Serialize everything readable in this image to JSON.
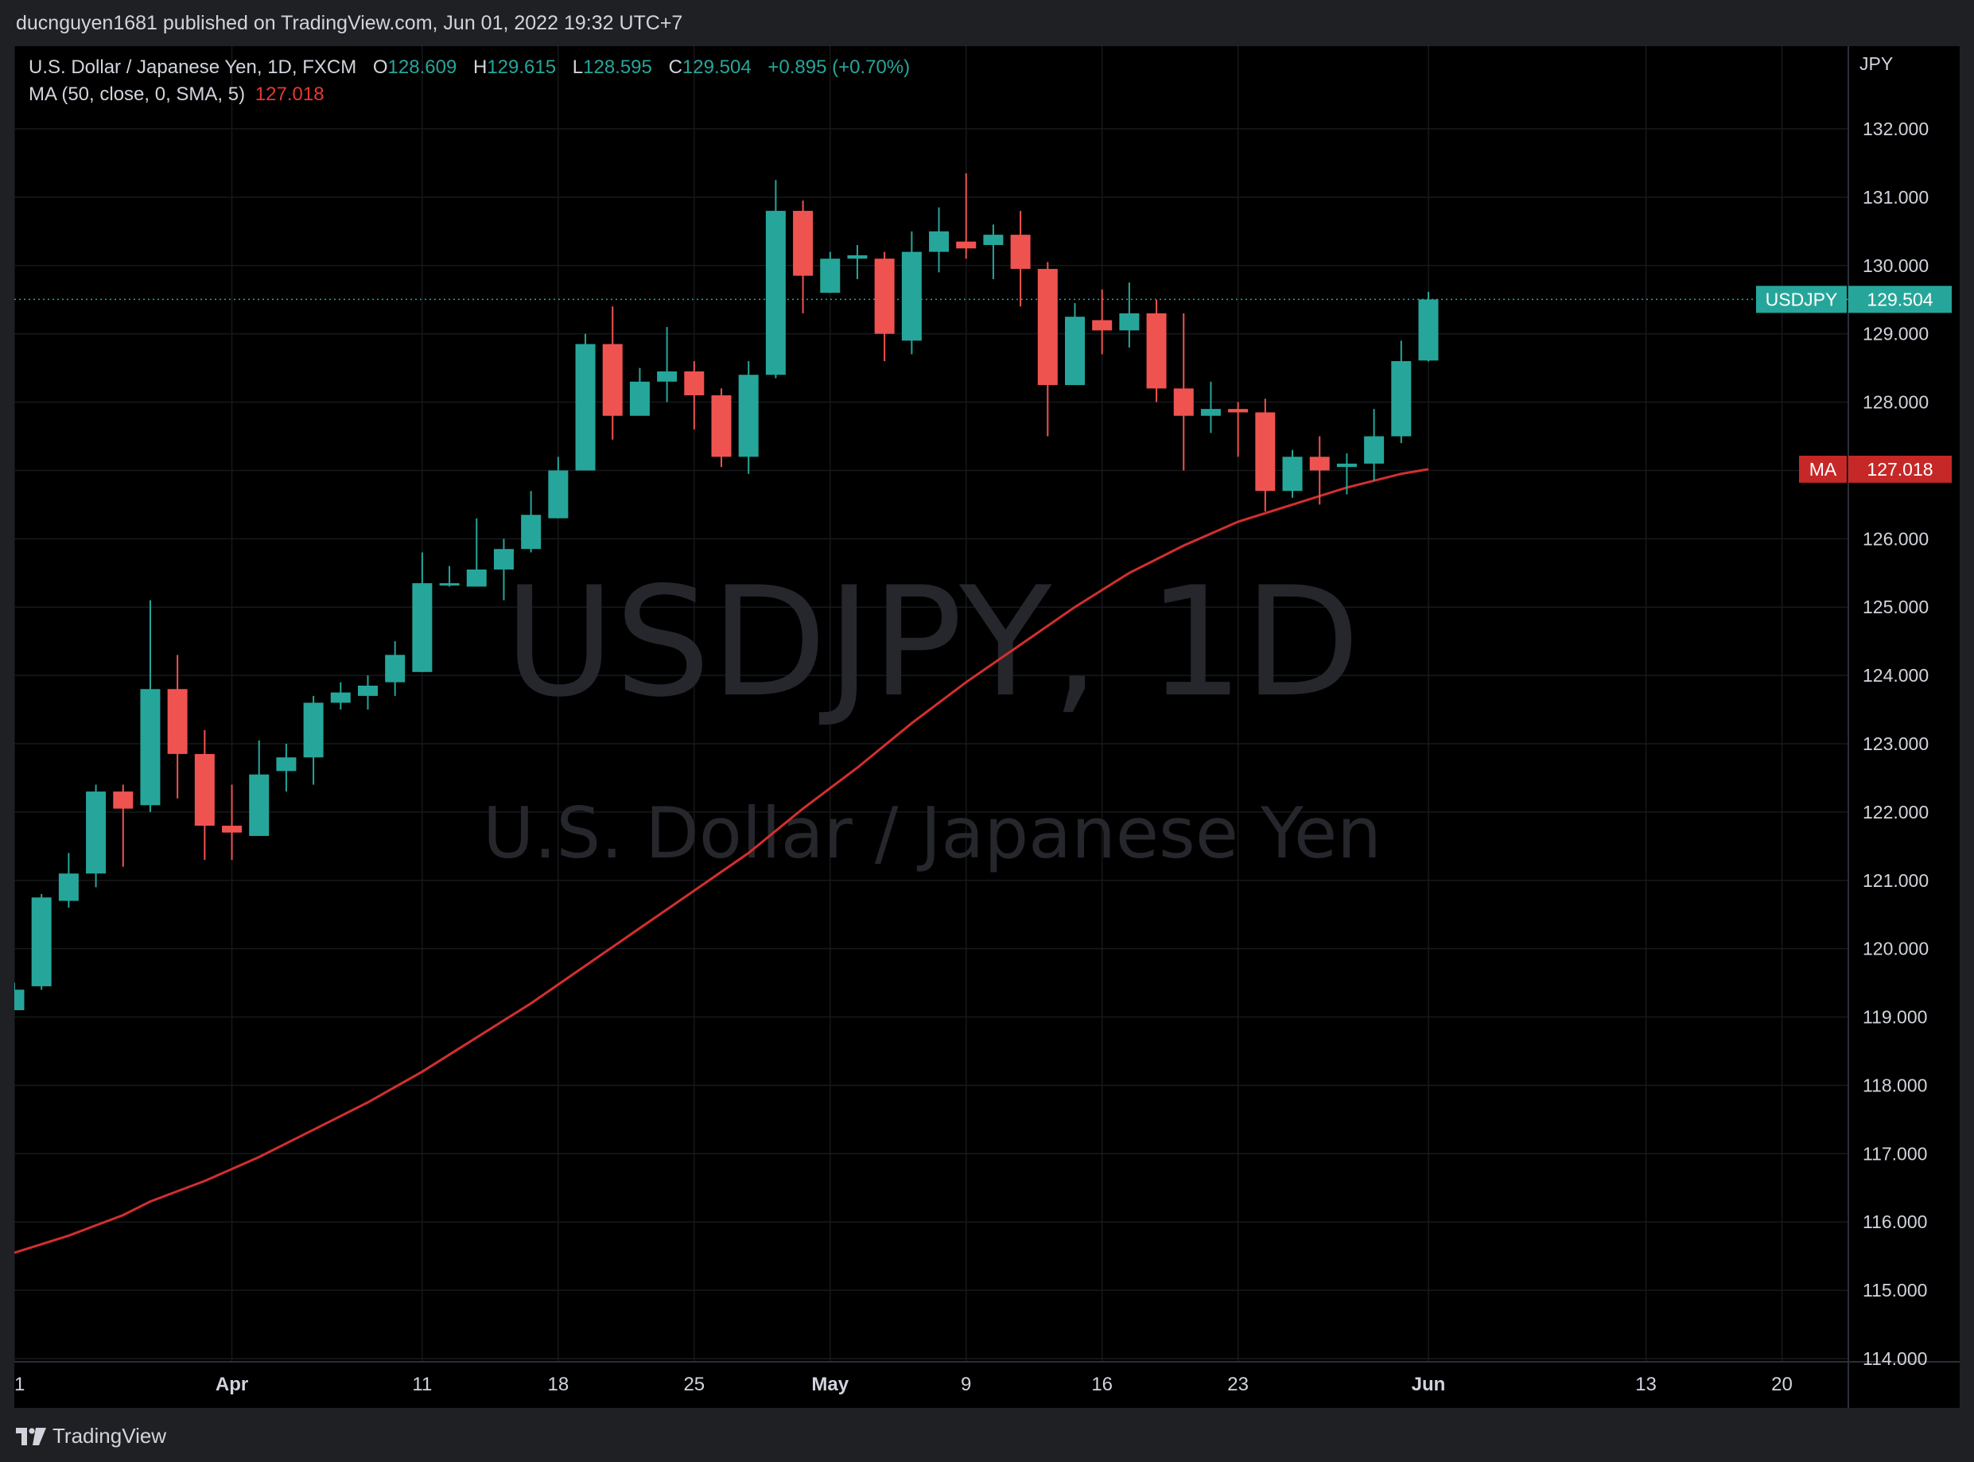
{
  "header": {
    "publish_text": "ducnguyen1681 published on TradingView.com, Jun 01, 2022 19:32 UTC+7"
  },
  "footer": {
    "brand": "TradingView"
  },
  "legend": {
    "symbol_line": "U.S. Dollar / Japanese Yen, 1D, FXCM",
    "o_label": "O",
    "o_value": "128.609",
    "h_label": "H",
    "h_value": "129.615",
    "l_label": "L",
    "l_value": "128.595",
    "c_label": "C",
    "c_value": "129.504",
    "change": "+0.895 (+0.70%)",
    "ma_label": "MA (50, close, 0, SMA, 5)",
    "ma_value": "127.018"
  },
  "colors": {
    "up": "#26a69a",
    "down": "#ef5350",
    "ma_line": "#d32f2f",
    "grid": "#1c1e24",
    "axis_text": "#d1d4dc",
    "watermark": "#3a3c42"
  },
  "chart_data": {
    "type": "candlestick",
    "symbol": "USDJPY",
    "interval": "1D",
    "watermark_title": "USDJPY, 1D",
    "watermark_subtitle": "U.S. Dollar / Japanese Yen",
    "currency_label": "JPY",
    "ylim": [
      113.9,
      133.5
    ],
    "y_ticks": [
      "132.000",
      "131.000",
      "130.000",
      "129.000",
      "128.000",
      "127.000",
      "126.000",
      "125.000",
      "124.000",
      "123.000",
      "122.000",
      "121.000",
      "120.000",
      "119.000",
      "118.000",
      "117.000",
      "116.000",
      "115.000",
      "114.000"
    ],
    "x_ticks": [
      {
        "label": "1",
        "day": 0
      },
      {
        "label": "Apr",
        "day": 8
      },
      {
        "label": "11",
        "day": 15
      },
      {
        "label": "18",
        "day": 20
      },
      {
        "label": "25",
        "day": 25
      },
      {
        "label": "May",
        "day": 30
      },
      {
        "label": "9",
        "day": 35
      },
      {
        "label": "16",
        "day": 40
      },
      {
        "label": "23",
        "day": 45
      },
      {
        "label": "Jun",
        "day": 52
      },
      {
        "label": "13",
        "day": 60
      },
      {
        "label": "20",
        "day": 65
      }
    ],
    "candles": [
      {
        "day": 0,
        "o": 119.1,
        "h": 119.5,
        "l": 119.1,
        "c": 119.4
      },
      {
        "day": 1,
        "o": 119.45,
        "h": 120.8,
        "l": 119.4,
        "c": 120.75
      },
      {
        "day": 2,
        "o": 120.7,
        "h": 121.4,
        "l": 120.6,
        "c": 121.1
      },
      {
        "day": 3,
        "o": 121.1,
        "h": 122.4,
        "l": 120.9,
        "c": 122.3
      },
      {
        "day": 4,
        "o": 122.3,
        "h": 122.4,
        "l": 121.2,
        "c": 122.05
      },
      {
        "day": 5,
        "o": 122.1,
        "h": 125.1,
        "l": 122.0,
        "c": 123.8
      },
      {
        "day": 6,
        "o": 123.8,
        "h": 124.3,
        "l": 122.2,
        "c": 122.85
      },
      {
        "day": 7,
        "o": 122.85,
        "h": 123.2,
        "l": 121.3,
        "c": 121.8
      },
      {
        "day": 8,
        "o": 121.8,
        "h": 122.4,
        "l": 121.3,
        "c": 121.7
      },
      {
        "day": 9,
        "o": 121.65,
        "h": 123.05,
        "l": 121.65,
        "c": 122.55
      },
      {
        "day": 10,
        "o": 122.6,
        "h": 123.0,
        "l": 122.3,
        "c": 122.8
      },
      {
        "day": 11,
        "o": 122.8,
        "h": 123.7,
        "l": 122.4,
        "c": 123.6
      },
      {
        "day": 12,
        "o": 123.6,
        "h": 123.9,
        "l": 123.5,
        "c": 123.75
      },
      {
        "day": 13,
        "o": 123.7,
        "h": 124.0,
        "l": 123.5,
        "c": 123.85
      },
      {
        "day": 14,
        "o": 123.9,
        "h": 124.5,
        "l": 123.7,
        "c": 124.3
      },
      {
        "day": 15,
        "o": 124.05,
        "h": 125.8,
        "l": 124.05,
        "c": 125.35
      },
      {
        "day": 16,
        "o": 125.35,
        "h": 125.6,
        "l": 125.3,
        "c": 125.35
      },
      {
        "day": 17,
        "o": 125.3,
        "h": 126.3,
        "l": 125.3,
        "c": 125.55
      },
      {
        "day": 18,
        "o": 125.55,
        "h": 126.0,
        "l": 125.1,
        "c": 125.85
      },
      {
        "day": 19,
        "o": 125.85,
        "h": 126.7,
        "l": 125.8,
        "c": 126.35
      },
      {
        "day": 20,
        "o": 126.3,
        "h": 127.2,
        "l": 126.3,
        "c": 127.0
      },
      {
        "day": 21,
        "o": 127.0,
        "h": 129.0,
        "l": 127.0,
        "c": 128.85
      },
      {
        "day": 22,
        "o": 128.85,
        "h": 129.4,
        "l": 127.45,
        "c": 127.8
      },
      {
        "day": 23,
        "o": 127.8,
        "h": 128.5,
        "l": 127.8,
        "c": 128.3
      },
      {
        "day": 24,
        "o": 128.3,
        "h": 129.1,
        "l": 128.0,
        "c": 128.45
      },
      {
        "day": 25,
        "o": 128.45,
        "h": 128.6,
        "l": 127.6,
        "c": 128.1
      },
      {
        "day": 26,
        "o": 128.1,
        "h": 128.2,
        "l": 127.05,
        "c": 127.2
      },
      {
        "day": 27,
        "o": 127.2,
        "h": 128.6,
        "l": 126.95,
        "c": 128.4
      },
      {
        "day": 28,
        "o": 128.4,
        "h": 131.25,
        "l": 128.35,
        "c": 130.8
      },
      {
        "day": 29,
        "o": 130.8,
        "h": 130.95,
        "l": 129.3,
        "c": 129.85
      },
      {
        "day": 30,
        "o": 129.6,
        "h": 130.2,
        "l": 129.6,
        "c": 130.1
      },
      {
        "day": 31,
        "o": 130.1,
        "h": 130.3,
        "l": 129.8,
        "c": 130.15
      },
      {
        "day": 32,
        "o": 130.1,
        "h": 130.2,
        "l": 128.6,
        "c": 129.0
      },
      {
        "day": 33,
        "o": 128.9,
        "h": 130.5,
        "l": 128.7,
        "c": 130.2
      },
      {
        "day": 34,
        "o": 130.2,
        "h": 130.85,
        "l": 129.9,
        "c": 130.5
      },
      {
        "day": 35,
        "o": 130.35,
        "h": 131.35,
        "l": 130.1,
        "c": 130.25
      },
      {
        "day": 36,
        "o": 130.3,
        "h": 130.6,
        "l": 129.8,
        "c": 130.45
      },
      {
        "day": 37,
        "o": 130.45,
        "h": 130.8,
        "l": 129.4,
        "c": 129.95
      },
      {
        "day": 38,
        "o": 129.95,
        "h": 130.05,
        "l": 127.5,
        "c": 128.25
      },
      {
        "day": 39,
        "o": 128.25,
        "h": 129.45,
        "l": 128.25,
        "c": 129.25
      },
      {
        "day": 40,
        "o": 129.2,
        "h": 129.65,
        "l": 128.7,
        "c": 129.05
      },
      {
        "day": 41,
        "o": 129.05,
        "h": 129.75,
        "l": 128.8,
        "c": 129.3
      },
      {
        "day": 42,
        "o": 129.3,
        "h": 129.5,
        "l": 128.0,
        "c": 128.2
      },
      {
        "day": 43,
        "o": 128.2,
        "h": 129.3,
        "l": 127.0,
        "c": 127.8
      },
      {
        "day": 44,
        "o": 127.8,
        "h": 128.3,
        "l": 127.55,
        "c": 127.9
      },
      {
        "day": 45,
        "o": 127.9,
        "h": 128.0,
        "l": 127.2,
        "c": 127.85
      },
      {
        "day": 46,
        "o": 127.85,
        "h": 128.05,
        "l": 126.4,
        "c": 126.7
      },
      {
        "day": 47,
        "o": 126.7,
        "h": 127.3,
        "l": 126.6,
        "c": 127.2
      },
      {
        "day": 48,
        "o": 127.2,
        "h": 127.5,
        "l": 126.5,
        "c": 127.0
      },
      {
        "day": 49,
        "o": 127.05,
        "h": 127.25,
        "l": 126.65,
        "c": 127.1
      },
      {
        "day": 50,
        "o": 127.1,
        "h": 127.9,
        "l": 126.85,
        "c": 127.5
      },
      {
        "day": 51,
        "o": 127.5,
        "h": 128.9,
        "l": 127.4,
        "c": 128.6
      },
      {
        "day": 52,
        "o": 128.609,
        "h": 129.615,
        "l": 128.595,
        "c": 129.504
      }
    ],
    "ma_series": {
      "name": "MA (50, close, 0, SMA, 5)",
      "days": [
        0,
        2,
        4,
        5,
        7,
        9,
        11,
        13,
        15,
        17,
        19,
        21,
        23,
        25,
        27,
        29,
        31,
        33,
        35,
        37,
        39,
        41,
        43,
        45,
        47,
        49,
        51,
        52
      ],
      "values": [
        115.55,
        115.8,
        116.1,
        116.3,
        116.6,
        116.95,
        117.35,
        117.75,
        118.2,
        118.7,
        119.2,
        119.75,
        120.3,
        120.85,
        121.4,
        122.05,
        122.65,
        123.3,
        123.9,
        124.45,
        125.0,
        125.5,
        125.9,
        126.25,
        126.5,
        126.75,
        126.95,
        127.018
      ]
    },
    "last_price_label": {
      "name": "USDJPY",
      "value": "129.504",
      "price": 129.504
    },
    "ma_price_label": {
      "name": "MA",
      "value": "127.018",
      "price": 127.018
    }
  }
}
